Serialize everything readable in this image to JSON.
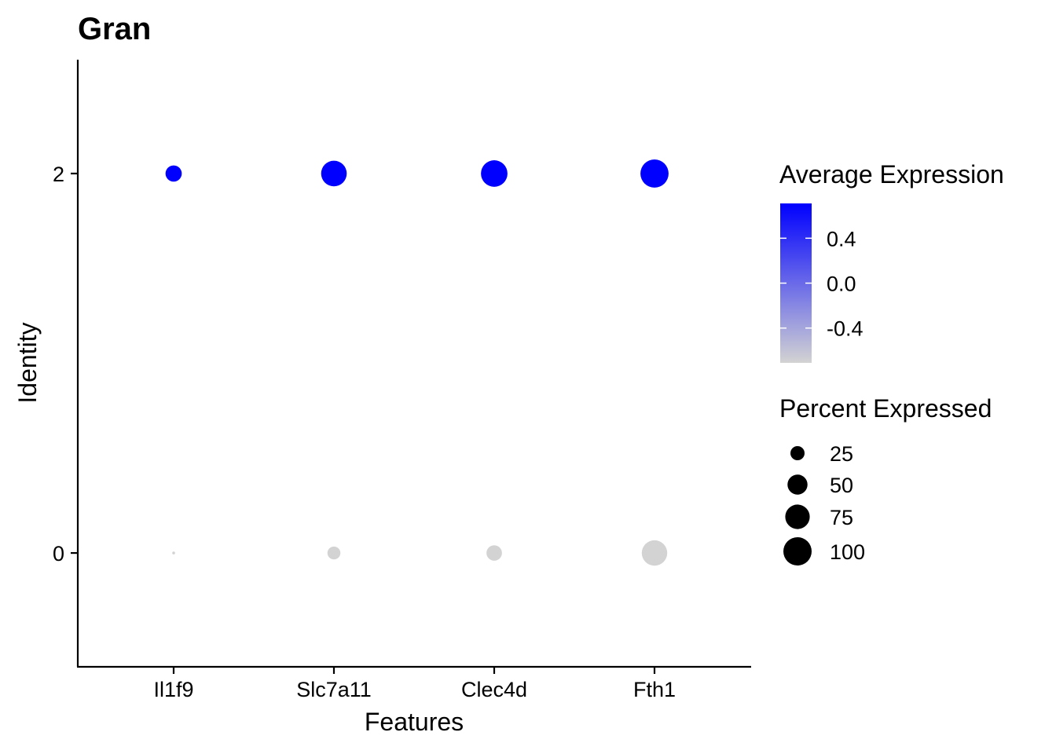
{
  "chart_data": {
    "type": "dotplot",
    "title": "Gran",
    "xlabel": "Features",
    "ylabel": "Identity",
    "features": [
      "Il1f9",
      "Slc7a11",
      "Clec4d",
      "Fth1"
    ],
    "identities": [
      "2",
      "0"
    ],
    "y_ticks": [
      "0",
      "2"
    ],
    "ylim": [
      -0.6,
      2.6
    ],
    "grid": false,
    "points": [
      {
        "feature": "Il1f9",
        "identity": "2",
        "pct_exp": 33,
        "avg_exp": 0.71
      },
      {
        "feature": "Slc7a11",
        "identity": "2",
        "pct_exp": 82,
        "avg_exp": 0.71
      },
      {
        "feature": "Clec4d",
        "identity": "2",
        "pct_exp": 88,
        "avg_exp": 0.71
      },
      {
        "feature": "Fth1",
        "identity": "2",
        "pct_exp": 99,
        "avg_exp": 0.71
      },
      {
        "feature": "Il1f9",
        "identity": "0",
        "pct_exp": 1,
        "avg_exp": -0.71
      },
      {
        "feature": "Slc7a11",
        "identity": "0",
        "pct_exp": 21,
        "avg_exp": -0.71
      },
      {
        "feature": "Clec4d",
        "identity": "0",
        "pct_exp": 30,
        "avg_exp": -0.71
      },
      {
        "feature": "Fth1",
        "identity": "0",
        "pct_exp": 81,
        "avg_exp": -0.71
      }
    ],
    "color_legend": {
      "title": "Average Expression",
      "low_color": "#D3D3D3",
      "high_color": "#0000FF",
      "range": [
        -0.71,
        0.71
      ],
      "breaks": [
        0.4,
        0.0,
        -0.4
      ],
      "break_labels": [
        "0.4",
        "0.0",
        "-0.4"
      ]
    },
    "size_legend": {
      "title": "Percent Expressed",
      "breaks": [
        25,
        50,
        75,
        100
      ],
      "break_labels": [
        "25",
        "50",
        "75",
        "100"
      ],
      "color": "#000000"
    },
    "legend_position": "right"
  }
}
